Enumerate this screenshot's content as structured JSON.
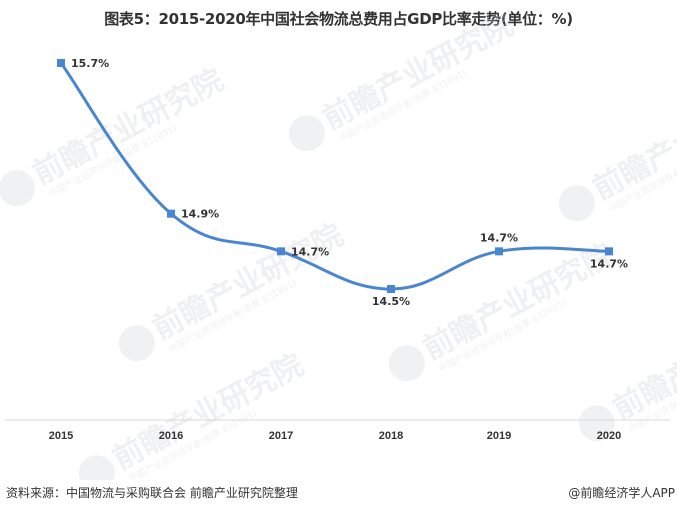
{
  "chart_data": {
    "type": "line",
    "title": "图表5：2015-2020年中国社会物流总费用占GDP比率走势(单位：%)",
    "xlabel": "",
    "ylabel": "",
    "categories": [
      "2015",
      "2016",
      "2017",
      "2018",
      "2019",
      "2020"
    ],
    "series": [
      {
        "name": "社会物流总费用占GDP比率",
        "values": [
          15.7,
          14.9,
          14.7,
          14.5,
          14.7,
          14.7
        ],
        "labels": [
          "15.7%",
          "14.9%",
          "14.7%",
          "14.5%",
          "14.7%",
          "14.7%"
        ],
        "color": "#4a86d0"
      }
    ],
    "grid": false,
    "legend": "none",
    "smooth": true
  },
  "header": {
    "title": "图表5：2015-2020年中国社会物流总费用占GDP比率走势(单位：%)"
  },
  "footer": {
    "source": "资料来源：中国物流与采购联合会 前瞻产业研究院整理",
    "brand": "@前瞻经济学人APP"
  },
  "watermark": {
    "main": "前瞻产业研究院",
    "sub": "中国产业咨询领导者(股票 831991)"
  },
  "colors": {
    "line": "#4a86d0",
    "marker": "#4a86d0",
    "axis": "#d9d9d9",
    "text": "#333333"
  }
}
